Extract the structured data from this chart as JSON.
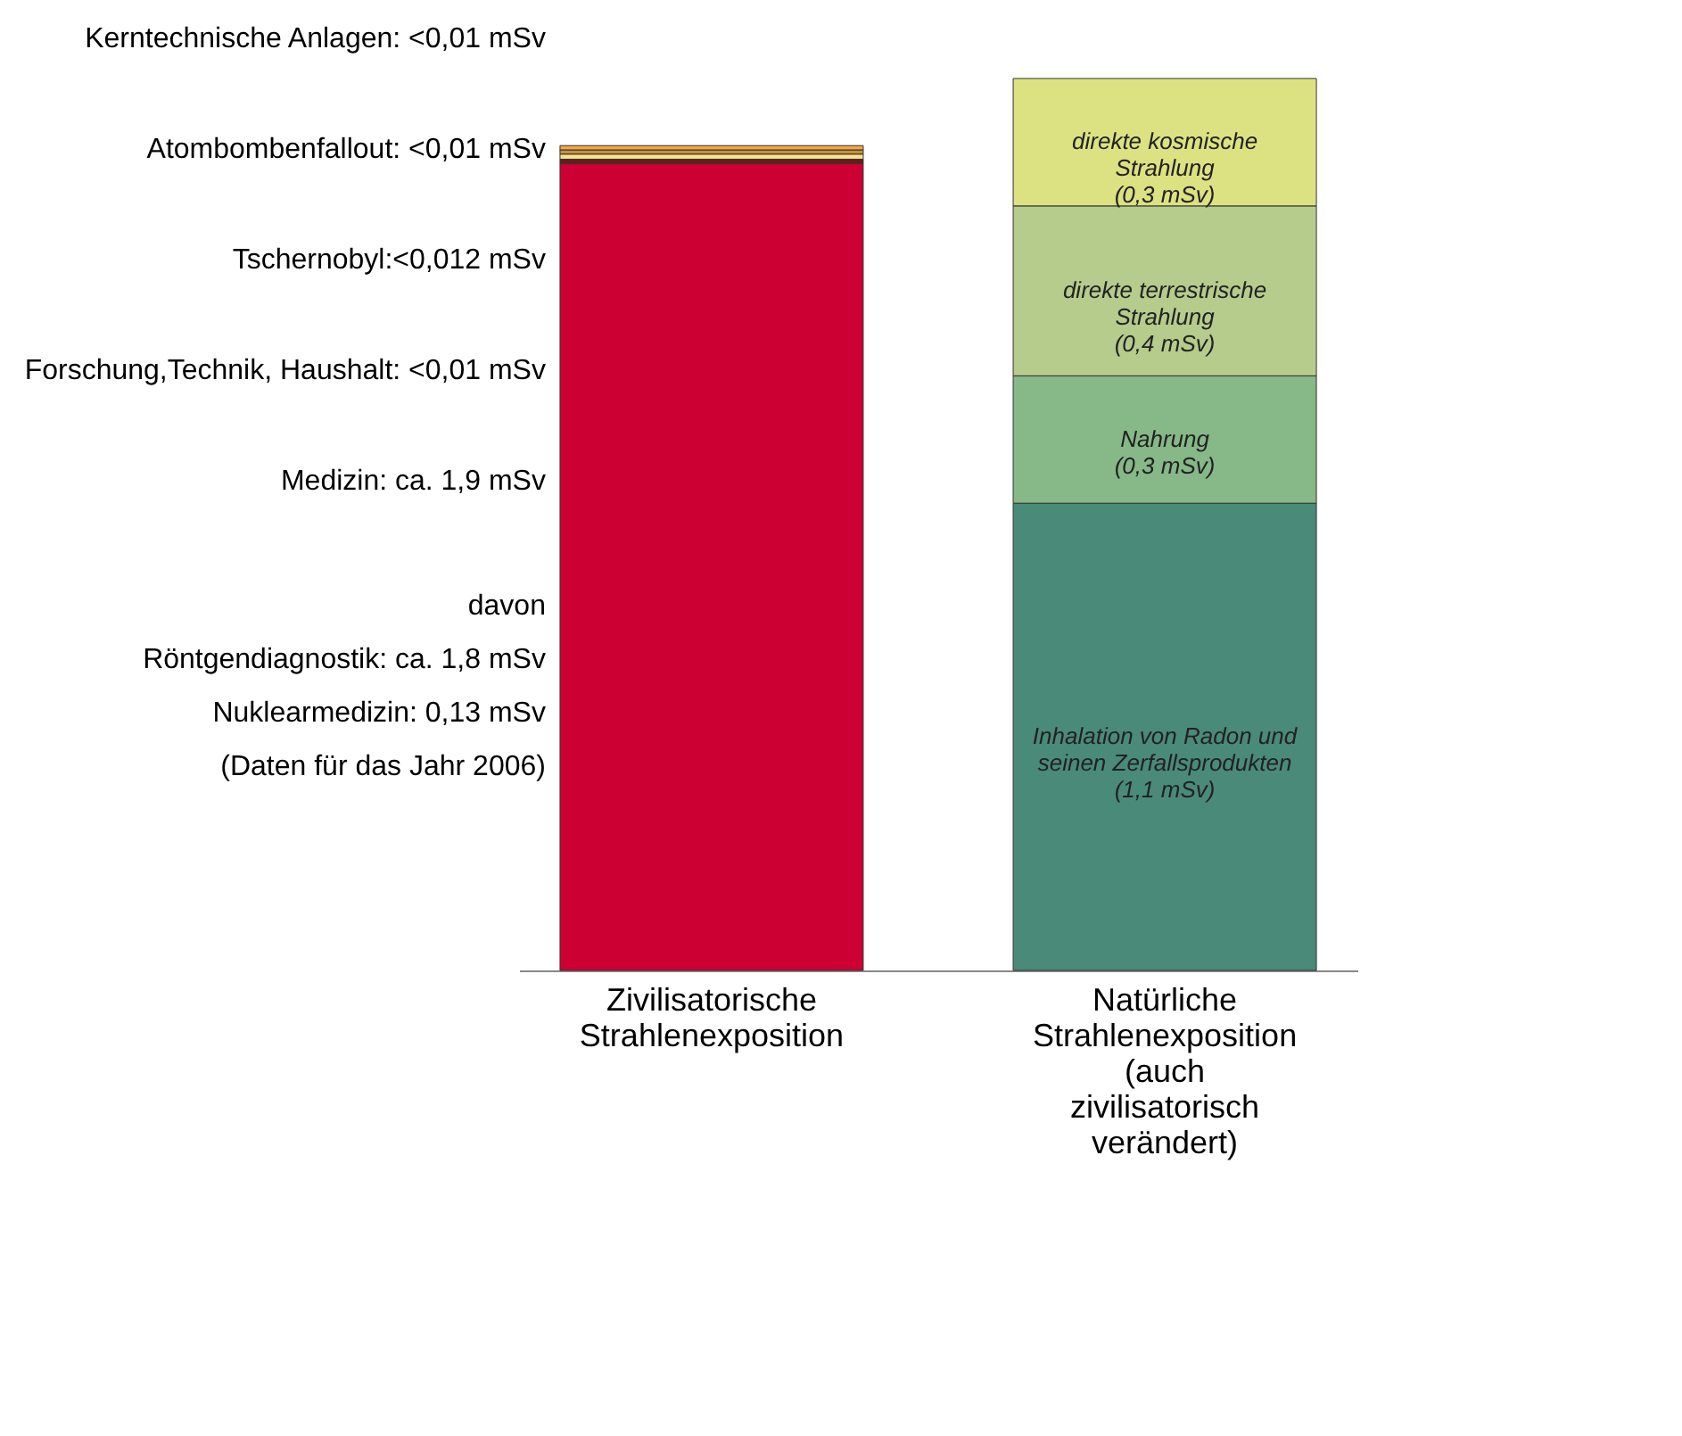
{
  "chart_data": {
    "type": "bar",
    "stacked": true,
    "categories": [
      "Zivilisatorische Strahlenexposition",
      "Natürliche Strahlenexposition (auch zivilisatorisch verändert)"
    ],
    "series": [
      {
        "color": "#cc0033",
        "values": [
          1.9,
          null
        ]
      },
      {
        "color": "#6b1a1a",
        "values": [
          0.01,
          null
        ]
      },
      {
        "color": "#f7e48a",
        "values": [
          0.012,
          null
        ]
      },
      {
        "color": "#c8903c",
        "values": [
          0.01,
          null
        ]
      },
      {
        "color": "#f4a640",
        "values": [
          0.01,
          null
        ]
      },
      {
        "name": "Inhalation von Radon und seinen Zerfallsprodukten",
        "color": "#4a8a78",
        "values": [
          null,
          1.1
        ],
        "value_labels": [
          null,
          "(1,1 mSv)"
        ]
      },
      {
        "name": "Nahrung",
        "color": "#86b888",
        "values": [
          null,
          0.3
        ],
        "value_labels": [
          null,
          "(0,3 mSv)"
        ]
      },
      {
        "name": "direkte terrestrische Strahlung",
        "color": "#b6cc8c",
        "values": [
          null,
          0.4
        ],
        "value_labels": [
          null,
          "(0,4 mSv)"
        ]
      },
      {
        "name": "direkte kosmische Strahlung",
        "color": "#dce282",
        "values": [
          null,
          0.3
        ],
        "value_labels": [
          null,
          "(0,3 mSv)"
        ]
      }
    ],
    "annotations": [
      "Kerntechnische Anlagen: <0,01 mSv",
      "Atombombenfallout: <0,01 mSv",
      "Tschernobyl:<0,012 mSv",
      "Forschung,Technik, Haushalt: <0,01 mSv",
      "Medizin: ca. 1,9 mSv",
      "davon",
      "Röntgendiagnostik: ca. 1,8 mSv",
      "Nuklearmedizin: 0,13 mSv",
      "(Daten für das Jahr 2006)"
    ]
  }
}
